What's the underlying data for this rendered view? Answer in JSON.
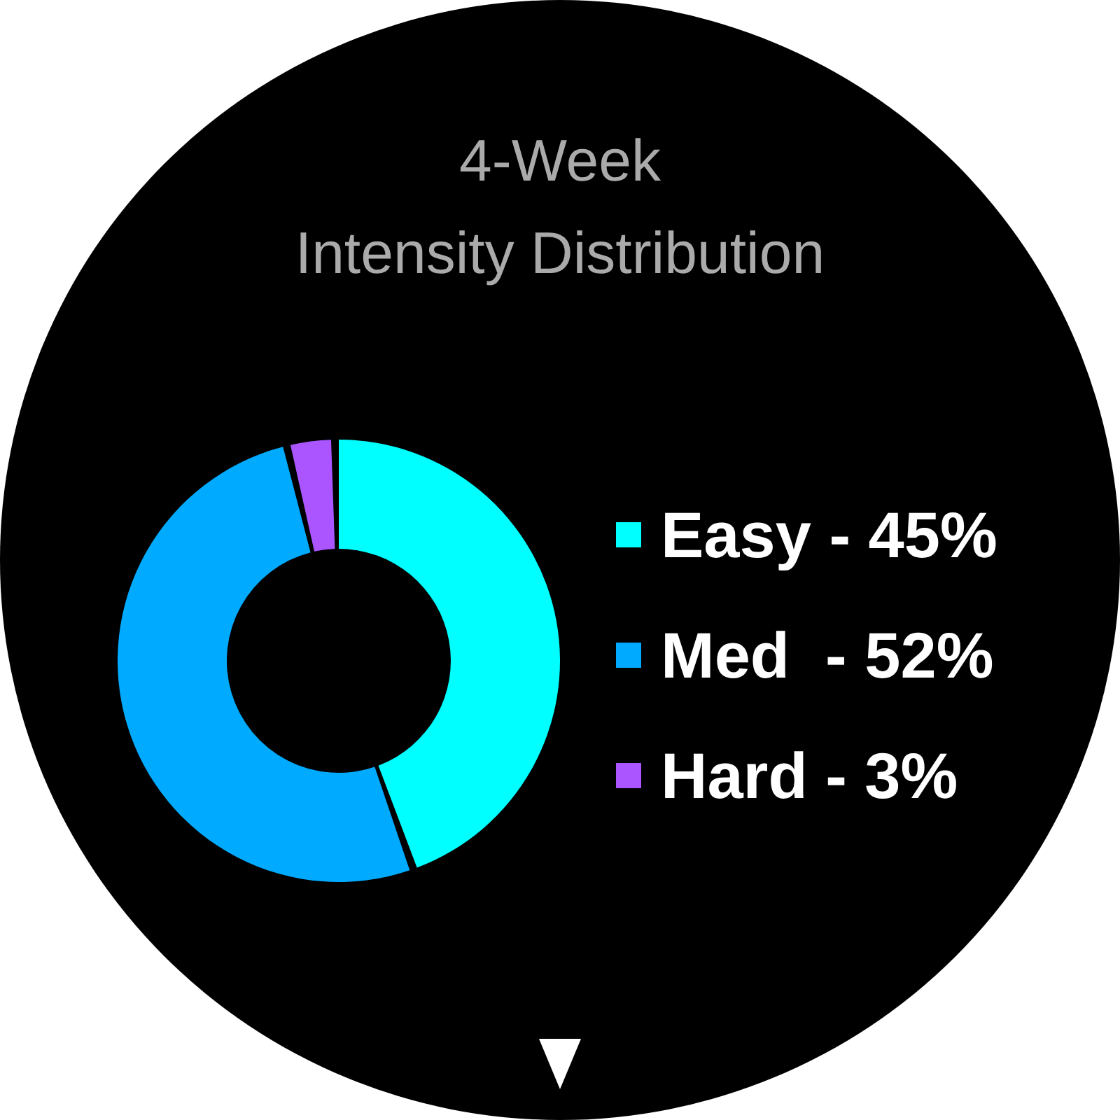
{
  "chart_data": {
    "type": "donut",
    "title": "4-Week\nIntensity Distribution",
    "categories": [
      "Easy - 45%",
      "Med  - 52%",
      "Hard - 3%"
    ],
    "values": [
      45,
      52,
      3
    ],
    "colors": [
      "#00ffff",
      "#00aaff",
      "#aa55ff"
    ],
    "legend": "right"
  }
}
